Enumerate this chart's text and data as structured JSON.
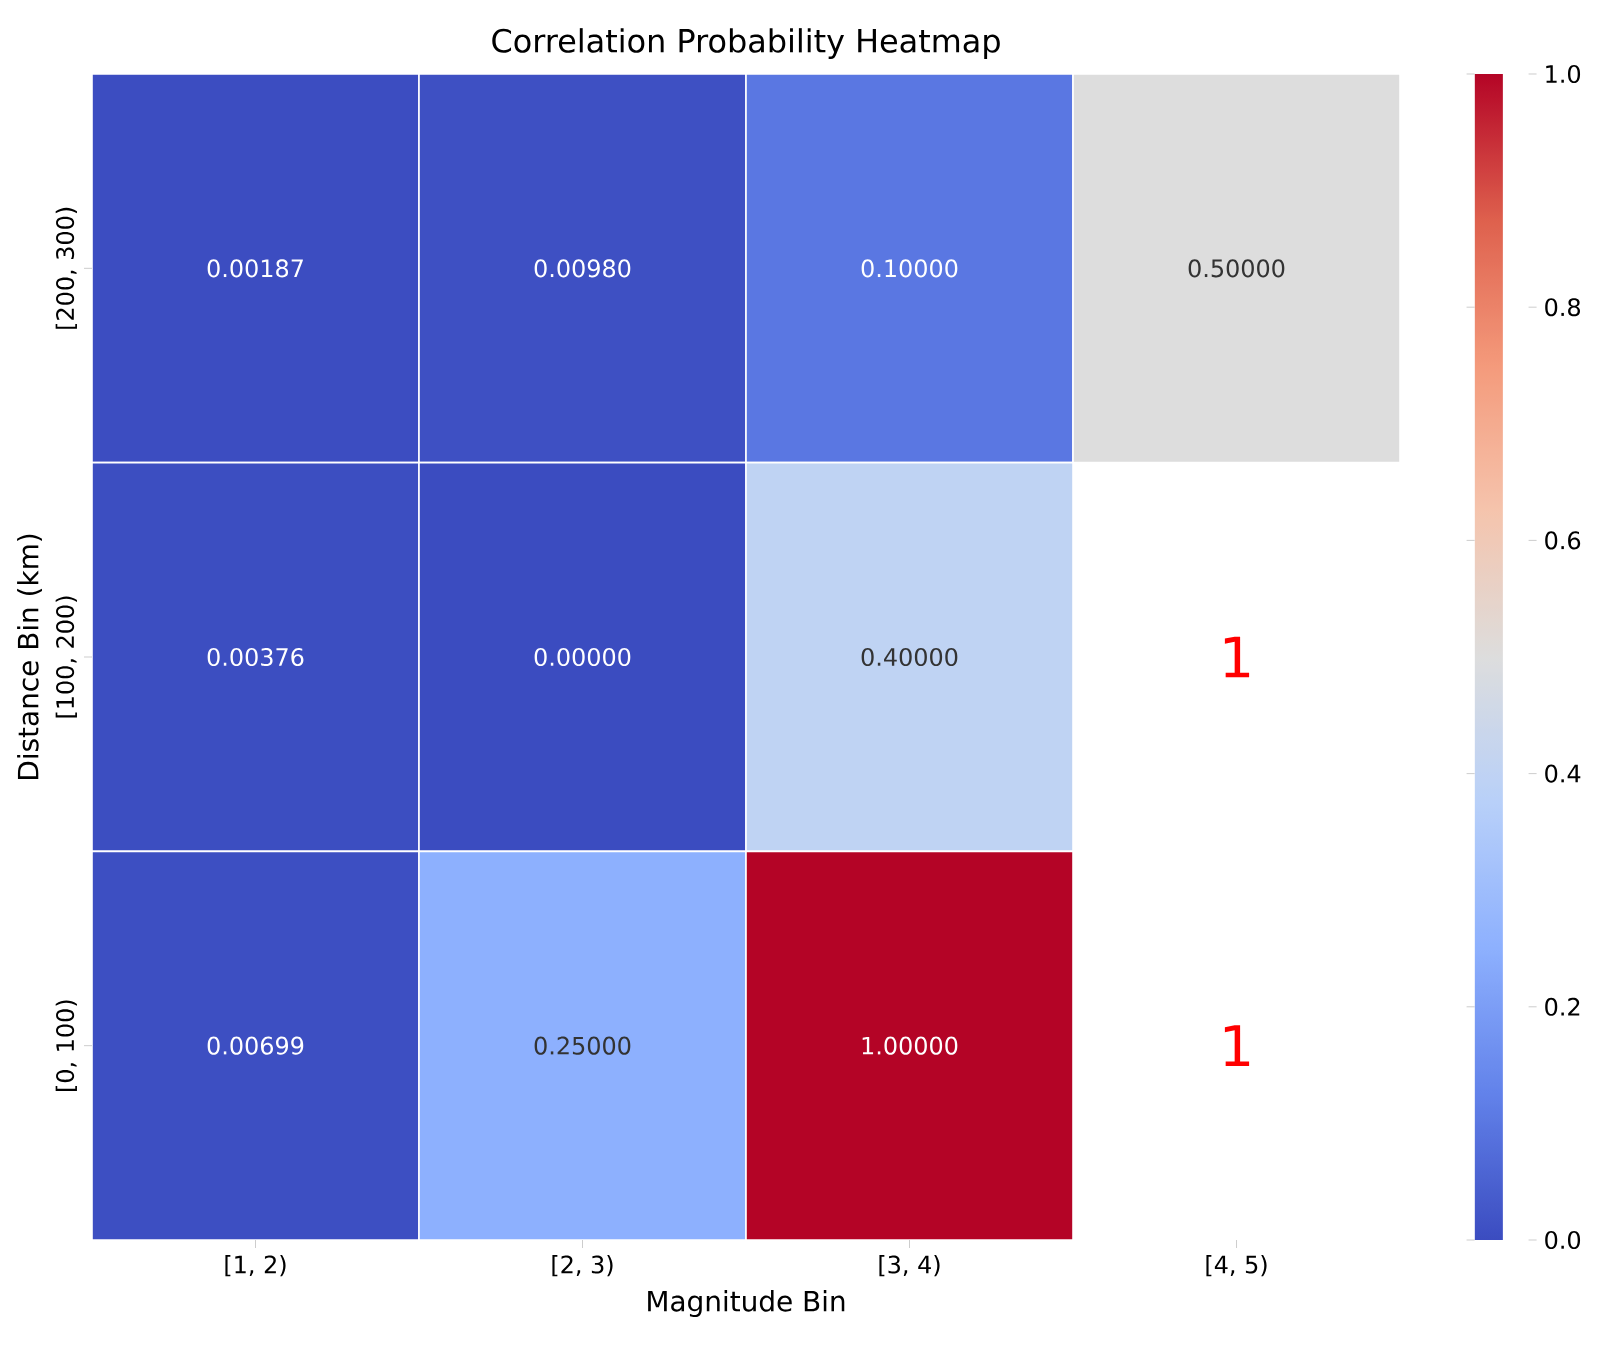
{
  "chart_data": {
    "type": "heatmap",
    "title": "Correlation Probability Heatmap",
    "xlabel": "Magnitude Bin",
    "ylabel": "Distance Bin (km)",
    "categories": [
      "[1, 2)",
      "[2, 3)",
      "[3, 4)",
      "[4, 5)"
    ],
    "y_categories": [
      "[200, 300)",
      "[100, 200)",
      "[0, 100)"
    ],
    "cells": [
      [
        0.00187,
        0.0098,
        0.1,
        0.5
      ],
      [
        0.00376,
        0.0,
        0.4,
        null
      ],
      [
        0.00699,
        0.25,
        1.0,
        null
      ]
    ],
    "cell_labels": [
      [
        "0.00187",
        "0.00980",
        "0.10000",
        "0.50000"
      ],
      [
        "0.00376",
        "0.00000",
        "0.40000",
        null
      ],
      [
        "0.00699",
        "0.25000",
        "1.00000",
        null
      ]
    ],
    "clim": [
      0,
      1
    ],
    "cticks": [
      {
        "value": 0,
        "label": "0.0"
      },
      {
        "value": 0.2,
        "label": "0.2"
      },
      {
        "value": 0.4,
        "label": "0.4"
      },
      {
        "value": 0.6,
        "label": "0.6"
      },
      {
        "value": 0.8,
        "label": "0.8"
      },
      {
        "value": 1,
        "label": "1.0"
      }
    ],
    "annotations": [
      "1",
      "1"
    ]
  }
}
